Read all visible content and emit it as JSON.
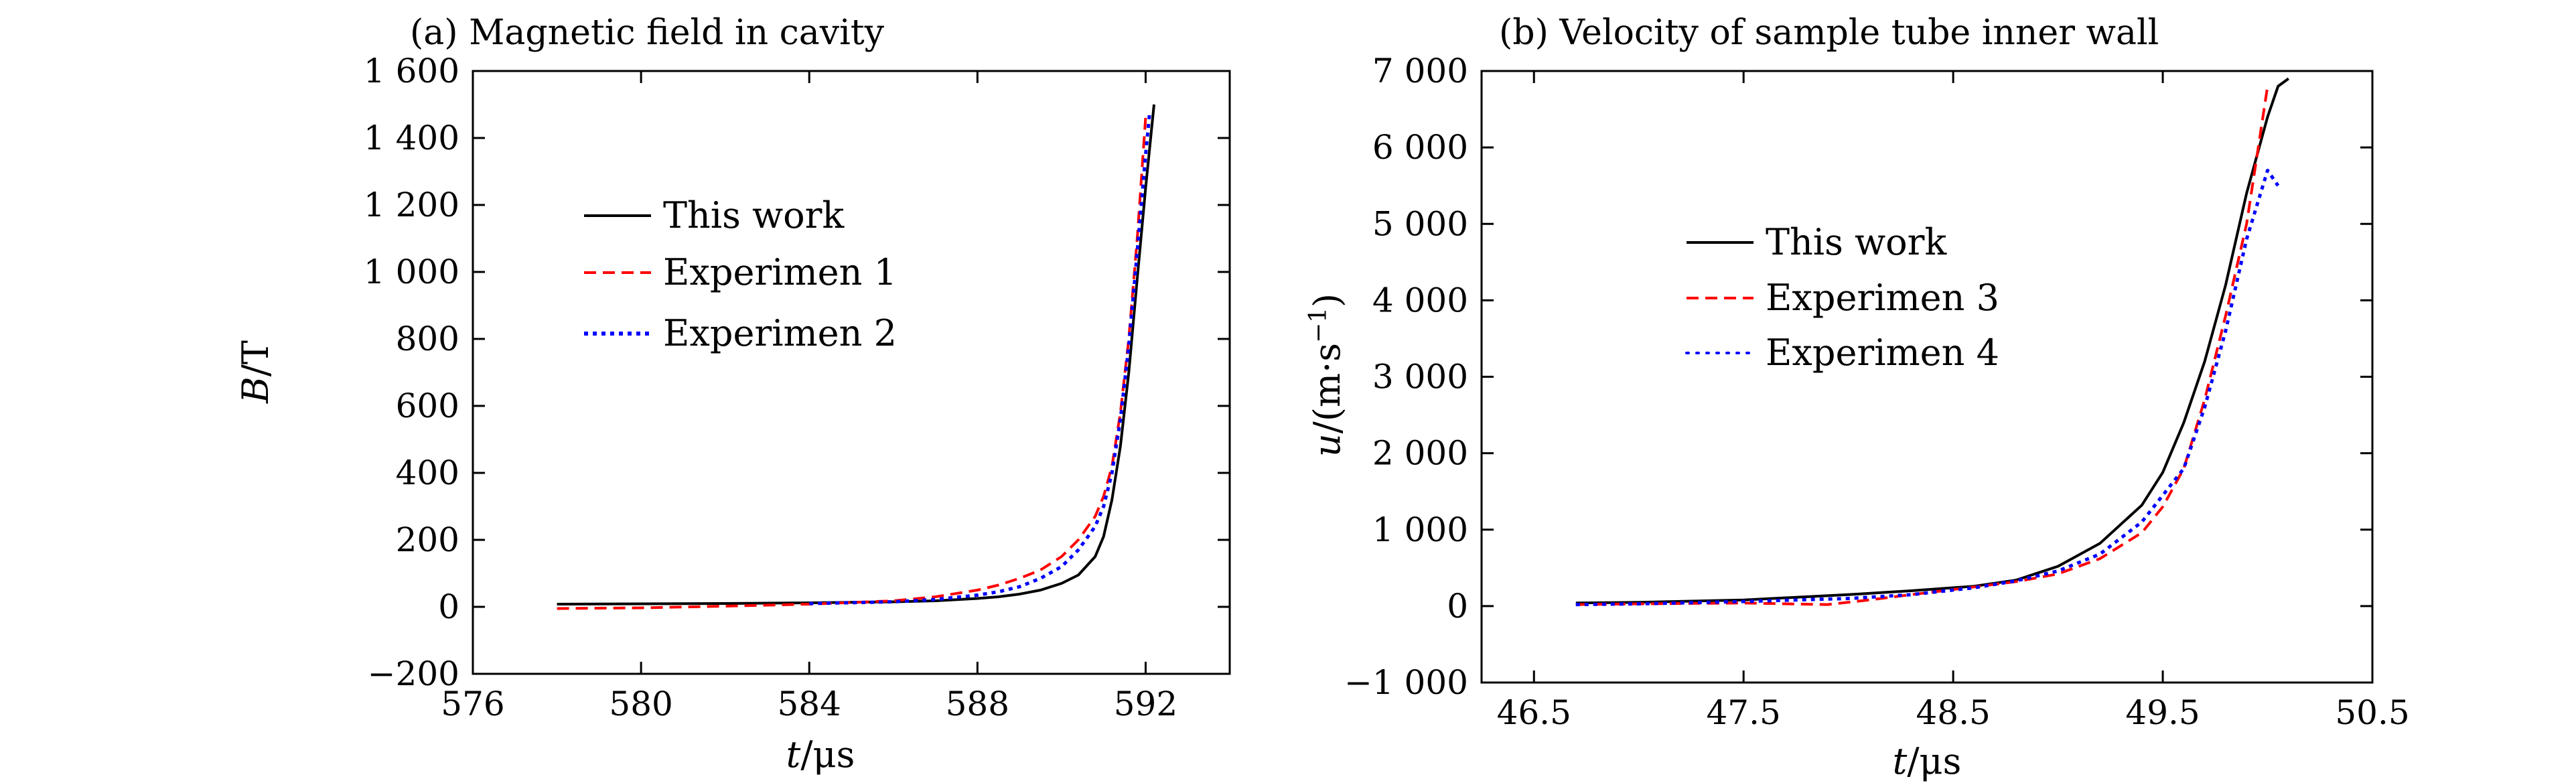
{
  "chart_data": [
    {
      "type": "line",
      "title": "(a) Magnetic field in cavity",
      "xlabel_var": "t",
      "xlabel_unit": "/μs",
      "ylabel_var": "B",
      "ylabel_unit": "/T",
      "xlim": [
        576,
        594
      ],
      "ylim": [
        -200,
        1600
      ],
      "xticks": [
        576,
        580,
        584,
        588,
        592
      ],
      "xtick_labels": [
        "576",
        "580",
        "584",
        "588",
        "592"
      ],
      "yticks": [
        -200,
        0,
        200,
        400,
        600,
        800,
        1000,
        1200,
        1400,
        1600
      ],
      "ytick_labels": [
        "−200",
        "0",
        "200",
        "400",
        "600",
        "800",
        "1 000",
        "1 200",
        "1 400",
        "1 600"
      ],
      "legend_position": "center-left",
      "series": [
        {
          "name": "This work",
          "color": "#000000",
          "style": "solid",
          "x": [
            578,
            580,
            582,
            584,
            586,
            587,
            588,
            588.5,
            589,
            589.5,
            590,
            590.4,
            590.8,
            591.0,
            591.2,
            591.4,
            591.6,
            591.8,
            592.0,
            592.2
          ],
          "y": [
            8,
            9,
            10,
            12,
            15,
            18,
            25,
            30,
            38,
            50,
            70,
            95,
            150,
            210,
            320,
            480,
            700,
            980,
            1250,
            1500
          ]
        },
        {
          "name": "Experimen 1",
          "color": "#ff0000",
          "style": "dashed",
          "x": [
            578,
            580,
            582,
            584,
            586,
            587,
            588,
            588.5,
            589,
            589.5,
            590,
            590.4,
            590.8,
            591.0,
            591.2,
            591.4,
            591.6,
            591.8,
            592.0
          ],
          "y": [
            -5,
            -3,
            2,
            8,
            18,
            30,
            50,
            65,
            85,
            110,
            150,
            200,
            270,
            330,
            420,
            580,
            800,
            1100,
            1460
          ]
        },
        {
          "name": "Experimen 2",
          "color": "#0000ff",
          "style": "dotted",
          "x": [
            584,
            586,
            587,
            588,
            588.5,
            589,
            589.5,
            590,
            590.4,
            590.8,
            591.0,
            591.2,
            591.4,
            591.6,
            591.8,
            592.0,
            592.1
          ],
          "y": [
            10,
            15,
            22,
            35,
            45,
            60,
            85,
            120,
            170,
            240,
            300,
            400,
            560,
            780,
            1060,
            1350,
            1480
          ]
        }
      ]
    },
    {
      "type": "line",
      "title": "(b) Velocity of sample tube inner wall",
      "xlabel_var": "t",
      "xlabel_unit": "/μs",
      "ylabel_var": "u",
      "ylabel_unit": "/(m·s",
      "ylabel_sup": "−1",
      "ylabel_close": ")",
      "xlim": [
        46.25,
        50.5
      ],
      "ylim": [
        -1000,
        7000
      ],
      "xticks": [
        46.5,
        47.5,
        48.5,
        49.5,
        50.5
      ],
      "xtick_labels": [
        "46.5",
        "47.5",
        "48.5",
        "49.5",
        "50.5"
      ],
      "yticks": [
        -1000,
        0,
        1000,
        2000,
        3000,
        4000,
        5000,
        6000,
        7000
      ],
      "ytick_labels": [
        "−1 000",
        "0",
        "1 000",
        "2 000",
        "3 000",
        "4 000",
        "5 000",
        "6 000",
        "7 000"
      ],
      "legend_position": "center-left",
      "series": [
        {
          "name": "This work",
          "color": "#000000",
          "style": "solid",
          "x": [
            46.7,
            47.0,
            47.5,
            48.0,
            48.3,
            48.6,
            48.8,
            49.0,
            49.2,
            49.4,
            49.5,
            49.6,
            49.7,
            49.8,
            49.9,
            50.0,
            50.05,
            50.1
          ],
          "y": [
            40,
            50,
            80,
            150,
            200,
            260,
            340,
            520,
            820,
            1320,
            1750,
            2400,
            3200,
            4200,
            5400,
            6400,
            6800,
            6900
          ]
        },
        {
          "name": "Experimen 3",
          "color": "#ff0000",
          "style": "dashed",
          "x": [
            46.7,
            47.0,
            47.5,
            47.9,
            48.1,
            48.3,
            48.6,
            48.8,
            49.0,
            49.2,
            49.4,
            49.5,
            49.6,
            49.7,
            49.8,
            49.9,
            49.95,
            50.0
          ],
          "y": [
            20,
            30,
            40,
            20,
            80,
            150,
            250,
            320,
            420,
            620,
            960,
            1300,
            1800,
            2700,
            3800,
            5000,
            5900,
            6800
          ]
        },
        {
          "name": "Experimen 4",
          "color": "#0000ff",
          "style": "dotted",
          "x": [
            46.7,
            47.0,
            47.5,
            48.0,
            48.3,
            48.6,
            48.8,
            49.0,
            49.2,
            49.4,
            49.6,
            49.7,
            49.8,
            49.9,
            50.0,
            50.05
          ],
          "y": [
            20,
            30,
            60,
            100,
            150,
            240,
            330,
            460,
            680,
            1100,
            1800,
            2600,
            3600,
            4800,
            5700,
            5500
          ]
        }
      ]
    }
  ]
}
